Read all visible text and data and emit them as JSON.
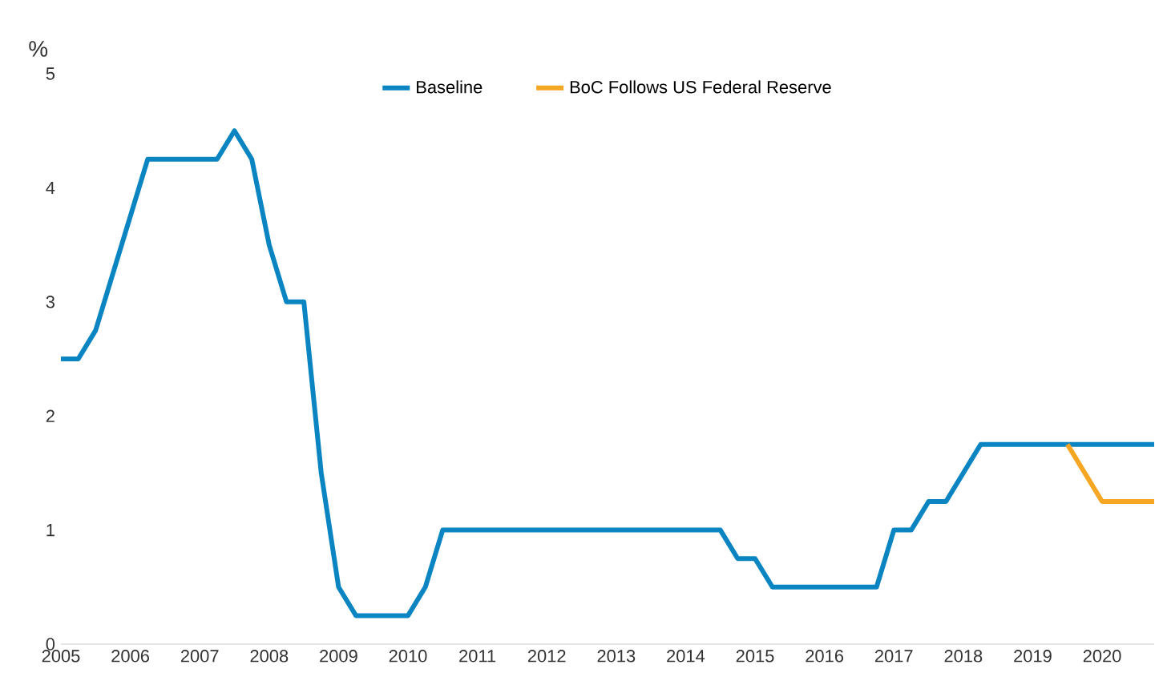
{
  "chart_data": {
    "type": "line",
    "ylabel": "%",
    "legend": "top",
    "xlim": [
      2005,
      2020.75
    ],
    "xticks": [
      2005,
      2006,
      2007,
      2008,
      2009,
      2010,
      2011,
      2012,
      2013,
      2014,
      2015,
      2016,
      2017,
      2018,
      2019,
      2020
    ],
    "ylim": [
      0,
      5
    ],
    "yticks": [
      0,
      1,
      2,
      3,
      4,
      5
    ],
    "series": [
      {
        "name": "Baseline",
        "color": "#0a85c2",
        "x": [
          2005.0,
          2005.25,
          2005.5,
          2005.75,
          2006.0,
          2006.25,
          2007.25,
          2007.5,
          2007.75,
          2008.0,
          2008.25,
          2008.5,
          2008.75,
          2009.0,
          2009.25,
          2010.0,
          2010.25,
          2010.5,
          2014.5,
          2014.75,
          2015.0,
          2015.25,
          2016.75,
          2017.0,
          2017.25,
          2017.5,
          2017.75,
          2018.25,
          2020.75
        ],
        "values": [
          2.5,
          2.5,
          2.75,
          3.25,
          3.75,
          4.25,
          4.25,
          4.5,
          4.25,
          3.5,
          3.0,
          3.0,
          1.5,
          0.5,
          0.25,
          0.25,
          0.5,
          1.0,
          1.0,
          0.75,
          0.75,
          0.5,
          0.5,
          1.0,
          1.0,
          1.25,
          1.25,
          1.75,
          1.75
        ]
      },
      {
        "name": "BoC Follows US Federal Reserve",
        "color": "#f5a623",
        "x": [
          2019.5,
          2020.0,
          2020.75
        ],
        "values": [
          1.75,
          1.25,
          1.25
        ]
      }
    ]
  }
}
